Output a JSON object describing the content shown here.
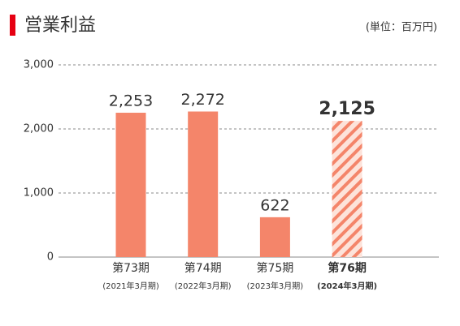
{
  "chart_data": {
    "type": "bar",
    "title": "営業利益",
    "unit_label": "(単位：百万円)",
    "categories": [
      "第73期",
      "第74期",
      "第75期",
      "第76期"
    ],
    "category_notes": [
      "(2021年3月期)",
      "(2022年3月期)",
      "(2023年3月期)",
      "(2024年3月期)"
    ],
    "values": [
      2253,
      2272,
      622,
      2125
    ],
    "value_labels": [
      "2,253",
      "2,272",
      "622",
      "2,125"
    ],
    "color": "#f4856a",
    "highlight": 3,
    "ylim": [
      0,
      3000
    ],
    "yticks": [
      0,
      {
        "value": 1000,
        "label": "1,000"
      },
      {
        "value": 2000,
        "label": "2,000"
      },
      {
        "value": 3000,
        "label": "3,000"
      }
    ],
    "grid": true
  }
}
